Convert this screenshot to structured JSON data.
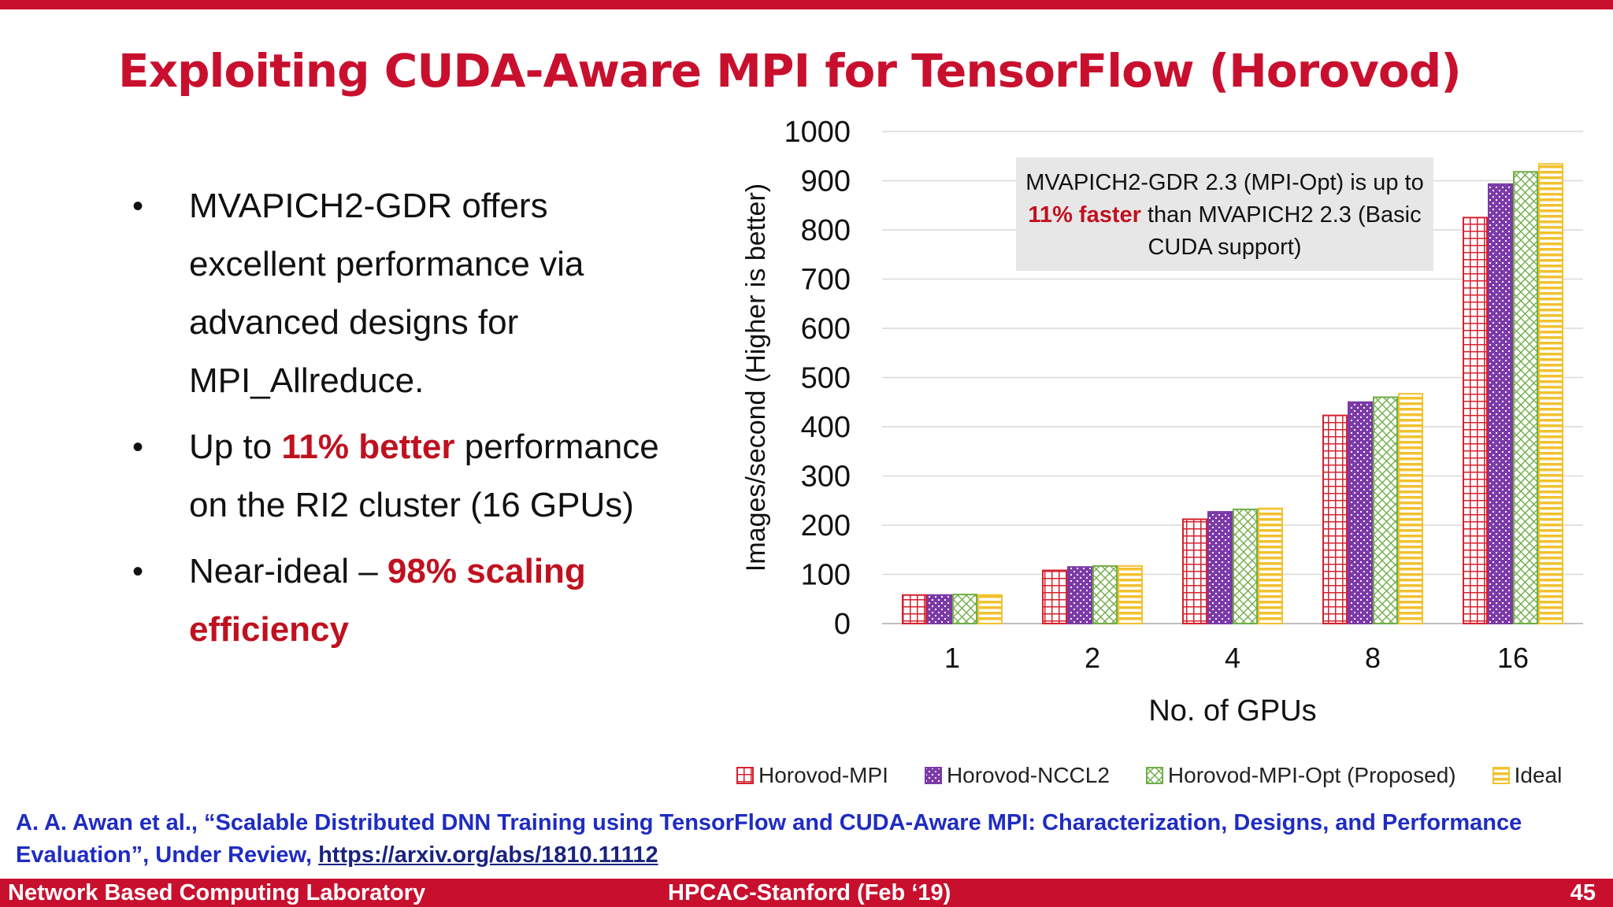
{
  "slide": {
    "title": "Exploiting CUDA-Aware MPI for TensorFlow (Horovod)",
    "bullets": [
      {
        "text": "MVAPICH2-GDR offers excellent performance via advanced designs for MPI_Allreduce.",
        "highlight": ""
      },
      {
        "text": "Up to ",
        "highlight": "11% better",
        "after": " performance on the RI2 cluster (16 GPUs)"
      },
      {
        "text": "Near-ideal – ",
        "highlight": "98% scaling efficiency",
        "after": ""
      }
    ],
    "callout": {
      "before": "MVAPICH2-GDR 2.3 (MPI-Opt) is up to ",
      "highlight": "11% faster",
      "after": " than MVAPICH2 2.3 (Basic CUDA support)"
    },
    "reference": {
      "text": "A. A. Awan et al., “Scalable Distributed DNN Training using TensorFlow and CUDA-Aware MPI: Characterization, Designs, and Performance Evaluation”, Under Review, ",
      "link": "https://arxiv.org/abs/1810.11112"
    },
    "footer": {
      "left": "Network Based Computing Laboratory",
      "center": "HPCAC-Stanford (Feb ‘19)",
      "page": "45"
    }
  },
  "colors": {
    "accent": "#c8102e",
    "horovod_mpi": "#d6202e",
    "horovod_nccl2": "#7b3aa8",
    "horovod_mpi_opt": "#70ad47",
    "ideal": "#f2c12e"
  },
  "chart_data": {
    "type": "bar",
    "title": "",
    "xlabel": "No. of GPUs",
    "ylabel": "Images/second (Higher is better)",
    "ylim": [
      0,
      1000
    ],
    "yticks": [
      0,
      100,
      200,
      300,
      400,
      500,
      600,
      700,
      800,
      900,
      1000
    ],
    "grid": true,
    "legend": "bottom",
    "categories": [
      "1",
      "2",
      "4",
      "8",
      "16"
    ],
    "series": [
      {
        "name": "Horovod-MPI",
        "pattern": "grid",
        "values": [
          58,
          108,
          212,
          423,
          825
        ]
      },
      {
        "name": "Horovod-NCCL2",
        "pattern": "dots",
        "values": [
          58,
          115,
          227,
          450,
          893
        ]
      },
      {
        "name": "Horovod-MPI-Opt (Proposed)",
        "pattern": "lattice",
        "values": [
          59,
          117,
          232,
          460,
          918
        ]
      },
      {
        "name": "Ideal",
        "pattern": "stripes",
        "values": [
          58,
          117,
          234,
          467,
          934
        ]
      }
    ]
  }
}
